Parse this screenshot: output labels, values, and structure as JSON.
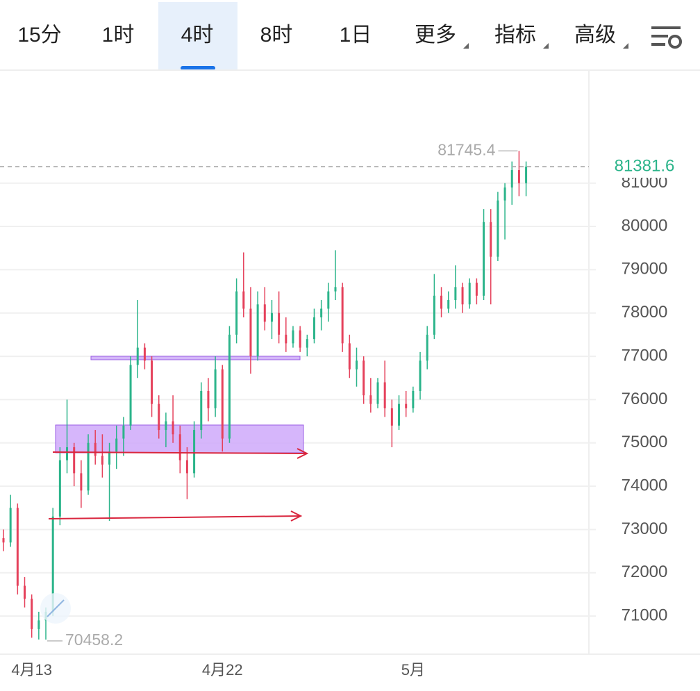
{
  "tabs": [
    "15分",
    "1时",
    "4时",
    "8时",
    "1日",
    "更多",
    "指标",
    "高级"
  ],
  "active_tab": 2,
  "chart_data": {
    "type": "candlestick",
    "categories": [
      null,
      null,
      null,
      null,
      "4月13",
      null,
      null,
      null,
      null,
      null,
      null,
      null,
      null,
      null,
      null,
      null,
      null,
      null,
      null,
      null,
      null,
      null,
      null,
      null,
      null,
      null,
      null,
      null,
      null,
      null,
      null,
      "4月22",
      null,
      null,
      null,
      null,
      null,
      null,
      null,
      null,
      null,
      null,
      null,
      null,
      null,
      null,
      null,
      null,
      null,
      null,
      null,
      null,
      null,
      null,
      null,
      null,
      null,
      null,
      "5月",
      null,
      null,
      null,
      null,
      null,
      null,
      null,
      null,
      null,
      null,
      null,
      null,
      null,
      null,
      null,
      null
    ],
    "open": [
      72800,
      72700,
      73500,
      71700,
      71400,
      70700,
      70900,
      71100,
      73300,
      74600,
      74900,
      74300,
      73900,
      75000,
      74700,
      74500,
      74800,
      75100,
      75400,
      76800,
      77200,
      76900,
      75900,
      75300,
      75500,
      75200,
      74600,
      74300,
      75300,
      76200,
      75800,
      76700,
      75100,
      77500,
      78500,
      78100,
      77000,
      78200,
      77800,
      78000,
      77500,
      77300,
      77600,
      77200,
      77400,
      77900,
      78100,
      78500,
      78600,
      77300,
      76700,
      76900,
      76100,
      75900,
      76400,
      75800,
      75400,
      75900,
      75800,
      76200,
      76900,
      77500,
      78400,
      78100,
      78300,
      78600,
      78200,
      78700,
      78400,
      80100,
      79300,
      80600,
      80900,
      81300,
      81000
    ],
    "high": [
      73000,
      73800,
      73600,
      71900,
      71500,
      71100,
      71200,
      73500,
      74900,
      76000,
      75000,
      74600,
      75200,
      75300,
      75200,
      75000,
      75400,
      75600,
      77000,
      78300,
      77300,
      77000,
      76100,
      75700,
      76100,
      75400,
      74900,
      75500,
      76400,
      76500,
      77000,
      76800,
      77700,
      78800,
      79400,
      78600,
      78500,
      78600,
      78300,
      78500,
      77900,
      77700,
      77700,
      77500,
      78100,
      78300,
      78700,
      79450,
      78700,
      77500,
      77200,
      77000,
      76500,
      76500,
      76900,
      76000,
      76100,
      76200,
      76300,
      77100,
      77700,
      78900,
      78600,
      78500,
      79100,
      78700,
      78800,
      78800,
      80400,
      80400,
      80800,
      81000,
      81500,
      81745.4,
      81500
    ],
    "low": [
      72500,
      72600,
      71500,
      71200,
      70500,
      70460,
      70458.2,
      71000,
      73100,
      74300,
      74000,
      73500,
      73800,
      74500,
      74200,
      73200,
      74400,
      74700,
      75300,
      76500,
      76700,
      75600,
      75100,
      74900,
      75000,
      74300,
      73700,
      74200,
      75100,
      75500,
      75600,
      74800,
      75000,
      77300,
      77900,
      76600,
      76900,
      77600,
      77400,
      77300,
      77100,
      77200,
      77100,
      77000,
      77300,
      77600,
      77800,
      78300,
      77100,
      76500,
      76300,
      75900,
      75700,
      75800,
      75600,
      74900,
      75300,
      75600,
      75700,
      76000,
      76700,
      77400,
      77900,
      78000,
      78100,
      78000,
      78100,
      78200,
      78300,
      78200,
      79200,
      79700,
      80500,
      80700,
      80700
    ],
    "close": [
      72700,
      73500,
      71700,
      71400,
      70700,
      70900,
      71100,
      73300,
      74600,
      74900,
      74300,
      73900,
      75000,
      74700,
      74500,
      74800,
      75100,
      75400,
      76800,
      77200,
      76900,
      75900,
      75300,
      75500,
      75200,
      74600,
      74300,
      75300,
      76200,
      75800,
      76700,
      75100,
      77500,
      78500,
      78100,
      77000,
      78200,
      77800,
      78000,
      77500,
      77300,
      77600,
      77200,
      77400,
      77900,
      78100,
      78500,
      78600,
      77300,
      76700,
      76900,
      76100,
      75900,
      76400,
      75800,
      75400,
      75900,
      75800,
      76200,
      76900,
      77500,
      78400,
      78100,
      78300,
      78600,
      78200,
      78700,
      78400,
      80100,
      79300,
      80600,
      80900,
      81300,
      81000,
      81381.6
    ],
    "up_color": "#2bb48a",
    "down_color": "#e5415b",
    "ylim": [
      70120,
      83610
    ],
    "yticks": [
      71000,
      72000,
      73000,
      74000,
      75000,
      76000,
      77000,
      78000,
      79000,
      80000,
      81000
    ],
    "grid": true
  }
}
